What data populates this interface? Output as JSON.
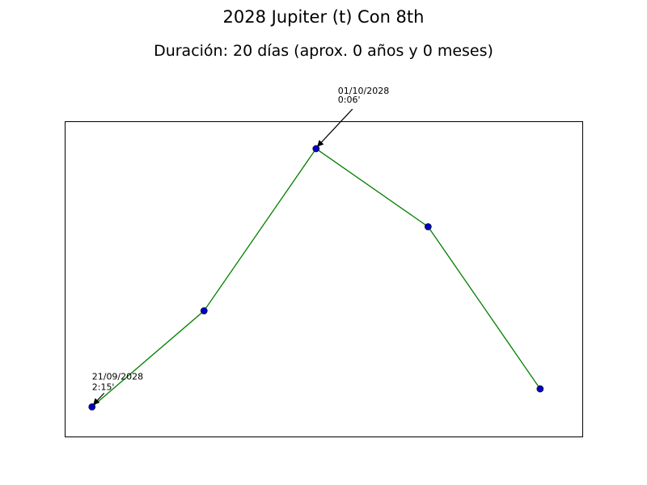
{
  "chart_data": {
    "type": "line",
    "title": "2028 Jupiter (t) Con 8th",
    "subtitle": "Duración: 20 días (aprox. 0 años y 0 meses)",
    "xlabel": "",
    "ylabel": "",
    "grid": false,
    "ticks_visible": false,
    "line_color": "#008000",
    "marker_color": "#0000cc",
    "series": [
      {
        "points": [
          {
            "x": 0,
            "y": 2.25
          },
          {
            "x": 5,
            "y": 1.45
          },
          {
            "x": 10,
            "y": 0.1
          },
          {
            "x": 15,
            "y": 0.75
          },
          {
            "x": 20,
            "y": 2.1
          }
        ]
      }
    ],
    "xlim": [
      -1.2,
      21.9
    ],
    "ylim": [
      2.5,
      -0.125
    ],
    "annotations": [
      {
        "point_index": 0,
        "date": "21/09/2028",
        "value": "2:15'"
      },
      {
        "point_index": 2,
        "date": "01/10/2028",
        "value": "0:06'"
      }
    ]
  }
}
